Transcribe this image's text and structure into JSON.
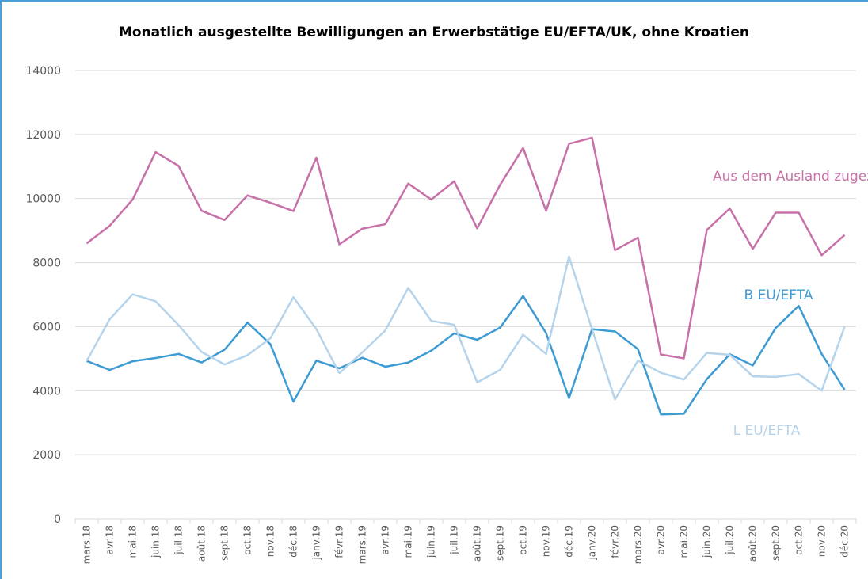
{
  "chart_data": {
    "type": "line",
    "title": "Monatlich ausgestellte Bewilligungen an Erwerbstätige EU/EFTA/UK, ohne Kroatien",
    "categories": [
      "mars.18",
      "avr.18",
      "mai.18",
      "juin.18",
      "juil.18",
      "août.18",
      "sept.18",
      "oct.18",
      "nov.18",
      "déc.18",
      "janv.19",
      "févr.19",
      "mars.19",
      "avr.19",
      "mai.19",
      "juin.19",
      "juil.19",
      "août.19",
      "sept.19",
      "oct.19",
      "nov.19",
      "déc.19",
      "janv.20",
      "févr.20",
      "mars.20",
      "avr.20",
      "mai.20",
      "juin.20",
      "juil.20",
      "août.20",
      "sept.20",
      "oct.20",
      "nov.20",
      "déc.20"
    ],
    "series": [
      {
        "name": "Aus dem Ausland zugezogen",
        "color": "#c870a8",
        "values": [
          8600,
          9150,
          9970,
          11450,
          11020,
          9620,
          9330,
          10100,
          9870,
          9610,
          11280,
          8570,
          9060,
          9200,
          10470,
          9970,
          10540,
          9070,
          10430,
          11580,
          9620,
          11710,
          11900,
          8390,
          8780,
          5130,
          5010,
          9020,
          9690,
          8430,
          9560,
          9560,
          8230,
          8860
        ]
      },
      {
        "name": "B EU/EFTA",
        "color": "#3d9bd4",
        "values": [
          4930,
          4650,
          4920,
          5020,
          5150,
          4880,
          5280,
          6130,
          5450,
          3660,
          4940,
          4700,
          5030,
          4750,
          4880,
          5250,
          5790,
          5590,
          5970,
          6960,
          5800,
          3770,
          5920,
          5850,
          5300,
          3260,
          3280,
          4360,
          5140,
          4790,
          5960,
          6650,
          5150,
          4030
        ]
      },
      {
        "name": "L EU/EFTA",
        "color": "#b5d4ec",
        "values": [
          4930,
          6230,
          7010,
          6790,
          6050,
          5210,
          4820,
          5110,
          5640,
          6920,
          5920,
          4550,
          5200,
          5880,
          7210,
          6180,
          6060,
          4260,
          4650,
          5750,
          5150,
          8190,
          5920,
          3730,
          4940,
          4560,
          4350,
          5180,
          5120,
          4450,
          4430,
          4520,
          4000,
          6000
        ]
      }
    ],
    "ylim": [
      0,
      14000
    ],
    "yticks": [
      0,
      2000,
      4000,
      6000,
      8000,
      10000,
      12000,
      14000
    ],
    "grid": true
  }
}
